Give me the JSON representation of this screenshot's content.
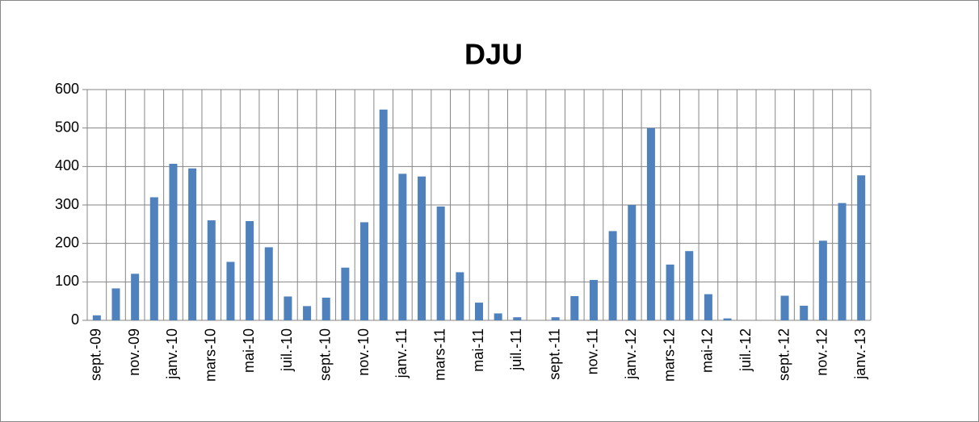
{
  "chart_data": {
    "type": "bar",
    "title": "DJU",
    "categories": [
      "sept.-09",
      null,
      "nov.-09",
      null,
      "janv.-10",
      null,
      "mars-10",
      null,
      "mai-10",
      null,
      "juil.-10",
      null,
      "sept.-10",
      null,
      "nov.-10",
      null,
      "janv.-11",
      null,
      "mars-11",
      null,
      "mai-11",
      null,
      "juil.-11",
      null,
      "sept.-11",
      null,
      "nov.-11",
      null,
      "janv.-12",
      null,
      "mars-12",
      null,
      "mai-12",
      null,
      "juil.-12",
      null,
      "sept.-12",
      null,
      "nov.-12",
      null,
      "janv.-13"
    ],
    "values": [
      13,
      83,
      121,
      320,
      407,
      395,
      260,
      152,
      258,
      190,
      62,
      37,
      59,
      137,
      255,
      548,
      381,
      374,
      296,
      125,
      46,
      18,
      8,
      0,
      8,
      63,
      105,
      232,
      300,
      500,
      145,
      180,
      68,
      5,
      0,
      0,
      64,
      38,
      207,
      305,
      377
    ],
    "color": "#4f81bd",
    "ylim": [
      0,
      600
    ],
    "yticks": [
      0,
      100,
      200,
      300,
      400,
      500,
      600
    ],
    "grid": true
  }
}
